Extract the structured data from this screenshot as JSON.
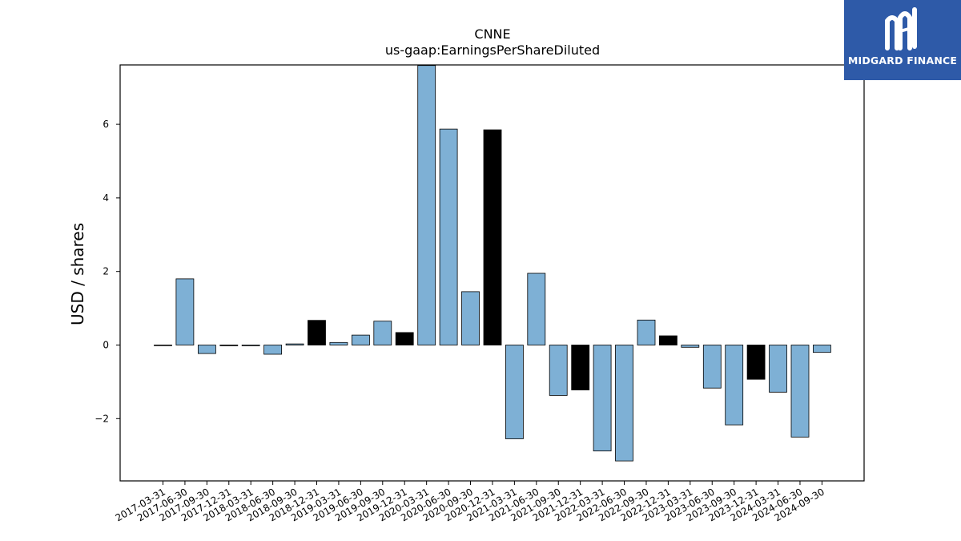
{
  "chart_data": {
    "type": "bar",
    "title": "CNNE",
    "subtitle": "us-gaap:EarningsPerShareDiluted",
    "xlabel": "",
    "ylabel": "USD / shares",
    "ylim": [
      -3.7,
      7.6
    ],
    "yticks": [
      -2,
      0,
      2,
      4,
      6
    ],
    "ytick_labels": [
      "−2",
      "0",
      "2",
      "4",
      "6"
    ],
    "grid": false,
    "colors": {
      "quarter": "#7eb0d5",
      "annual": "#000000",
      "edge": "#000000"
    },
    "categories": [
      "2017-03-31",
      "2017-06-30",
      "2017-09-30",
      "2017-12-31",
      "2018-03-31",
      "2018-06-30",
      "2018-09-30",
      "2018-12-31",
      "2019-03-31",
      "2019-06-30",
      "2019-09-30",
      "2019-12-31",
      "2020-03-31",
      "2020-06-30",
      "2020-09-30",
      "2020-12-31",
      "2021-03-31",
      "2021-06-30",
      "2021-09-30",
      "2021-12-31",
      "2022-03-31",
      "2022-06-30",
      "2022-09-30",
      "2022-12-31",
      "2023-03-31",
      "2023-06-30",
      "2023-09-30",
      "2023-12-31",
      "2024-03-31",
      "2024-06-30",
      "2024-09-30"
    ],
    "values": [
      0.0,
      1.8,
      -0.23,
      -0.02,
      -0.02,
      -0.25,
      0.03,
      0.67,
      0.07,
      0.27,
      0.65,
      0.34,
      7.6,
      5.87,
      1.45,
      5.85,
      -2.55,
      1.95,
      -1.37,
      -1.22,
      -2.88,
      -3.15,
      0.68,
      0.25,
      -0.06,
      -1.17,
      -2.17,
      -0.93,
      -1.28,
      -2.5,
      -0.2
    ],
    "annual": [
      false,
      false,
      false,
      true,
      false,
      false,
      false,
      true,
      false,
      false,
      false,
      true,
      false,
      false,
      false,
      true,
      false,
      false,
      false,
      true,
      false,
      false,
      false,
      true,
      false,
      false,
      false,
      true,
      false,
      false,
      false
    ]
  },
  "logo": {
    "text": "MIDGARD FINANCE",
    "icon": "midgard-logo-icon"
  }
}
